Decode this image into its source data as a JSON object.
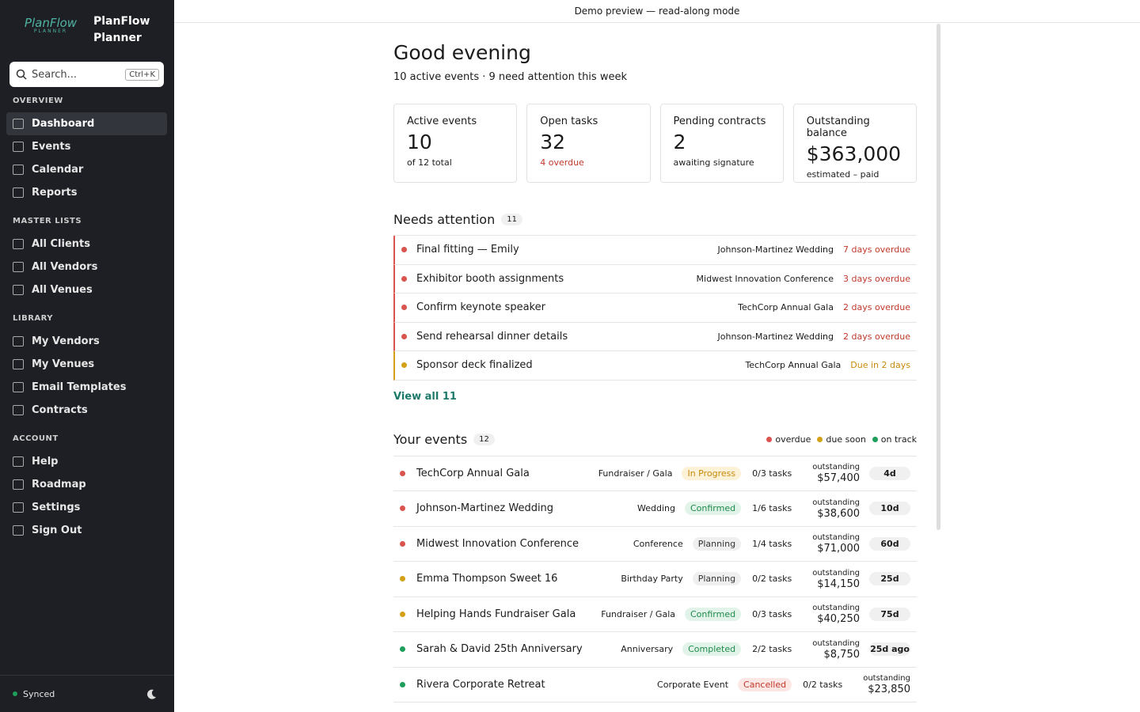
{
  "sidebar": {
    "logo": "PlanFlow",
    "logo_tag": "PLANNER",
    "brand": "PlanFlow Planner",
    "search": "Search...",
    "shortcut": "Ctrl+K",
    "sections": [
      {
        "title": "OVERVIEW",
        "items": [
          "Dashboard",
          "Events",
          "Calendar",
          "Reports"
        ]
      },
      {
        "title": "MASTER LISTS",
        "items": [
          "All Clients",
          "All Vendors",
          "All Venues"
        ]
      },
      {
        "title": "LIBRARY",
        "items": [
          "My Vendors",
          "My Venues",
          "Email Templates",
          "Contracts"
        ]
      },
      {
        "title": "ACCOUNT",
        "items": [
          "Help",
          "Roadmap",
          "Settings",
          "Sign Out"
        ]
      }
    ],
    "status": "Synced"
  },
  "banner": "Demo preview — read-along mode",
  "header": {
    "title": "Good evening",
    "subtitle": "10 active events · 9 need attention this week"
  },
  "stats": [
    {
      "label": "Active events",
      "value": "10",
      "note": "of 12 total",
      "note_color": "#222"
    },
    {
      "label": "Open tasks",
      "value": "32",
      "note": "4 overdue",
      "note_color": "#c0392b"
    },
    {
      "label": "Pending contracts",
      "value": "2",
      "note": "awaiting signature",
      "note_color": "#222"
    },
    {
      "label": "Outstanding balance",
      "value": "$363,000",
      "note": "estimated – paid",
      "note_color": "#222"
    }
  ],
  "attention": {
    "title": "Needs attention",
    "count": "11",
    "link": "View all 11",
    "items": [
      {
        "task": "Final fitting — Emily",
        "event": "Johnson-Martinez Wedding",
        "due": "7 days overdue",
        "color": "#d9534f",
        "text_color": "#c0392b"
      },
      {
        "task": "Exhibitor booth assignments",
        "event": "Midwest Innovation Conference",
        "due": "3 days overdue",
        "color": "#d9534f",
        "text_color": "#c0392b"
      },
      {
        "task": "Confirm keynote speaker",
        "event": "TechCorp Annual Gala",
        "due": "2 days overdue",
        "color": "#d9534f",
        "text_color": "#c0392b"
      },
      {
        "task": "Send rehearsal dinner details",
        "event": "Johnson-Martinez Wedding",
        "due": "2 days overdue",
        "color": "#d9534f",
        "text_color": "#c0392b"
      },
      {
        "task": "Sponsor deck finalized",
        "event": "TechCorp Annual Gala",
        "due": "Due in 2 days",
        "color": "#d4a017",
        "text_color": "#c98a0c"
      }
    ]
  },
  "events": {
    "title": "Your events",
    "count": "12",
    "outstanding_label": "outstanding",
    "legend": [
      {
        "label": "overdue",
        "color": "#d9534f"
      },
      {
        "label": "due soon",
        "color": "#d4a017"
      },
      {
        "label": "on track",
        "color": "#1e9e5a"
      }
    ],
    "rows": [
      {
        "name": "TechCorp Annual Gala",
        "color": "#d9534f",
        "type": "Fundraiser / Gala",
        "status": "In Progress",
        "status_bg": "#fdf1d8",
        "status_fg": "#c98a0c",
        "tasks": "0/3 tasks",
        "outstanding": "$57,400",
        "days": "4d"
      },
      {
        "name": "Johnson-Martinez Wedding",
        "color": "#d9534f",
        "type": "Wedding",
        "status": "Confirmed",
        "status_bg": "#e2f4e9",
        "status_fg": "#1e8a4c",
        "tasks": "1/6 tasks",
        "outstanding": "$38,600",
        "days": "10d"
      },
      {
        "name": "Midwest Innovation Conference",
        "color": "#d9534f",
        "type": "Conference",
        "status": "Planning",
        "status_bg": "#efefef",
        "status_fg": "#333",
        "tasks": "1/4 tasks",
        "outstanding": "$71,000",
        "days": "60d"
      },
      {
        "name": "Emma Thompson Sweet 16",
        "color": "#d4a017",
        "type": "Birthday Party",
        "status": "Planning",
        "status_bg": "#efefef",
        "status_fg": "#333",
        "tasks": "0/2 tasks",
        "outstanding": "$14,150",
        "days": "25d"
      },
      {
        "name": "Helping Hands Fundraiser Gala",
        "color": "#d4a017",
        "type": "Fundraiser / Gala",
        "status": "Confirmed",
        "status_bg": "#e2f4e9",
        "status_fg": "#1e8a4c",
        "tasks": "0/3 tasks",
        "outstanding": "$40,250",
        "days": "75d"
      },
      {
        "name": "Sarah & David 25th Anniversary",
        "color": "#1e9e5a",
        "type": "Anniversary",
        "status": "Completed",
        "status_bg": "#e2f4e9",
        "status_fg": "#1e8a4c",
        "tasks": "2/2 tasks",
        "outstanding": "$8,750",
        "days": "25d ago"
      },
      {
        "name": "Rivera Corporate Retreat",
        "color": "#1e9e5a",
        "type": "Corporate Event",
        "status": "Cancelled",
        "status_bg": "#fde7e5",
        "status_fg": "#c0392b",
        "tasks": "0/2 tasks",
        "outstanding": "$23,850",
        "days": ""
      }
    ]
  }
}
